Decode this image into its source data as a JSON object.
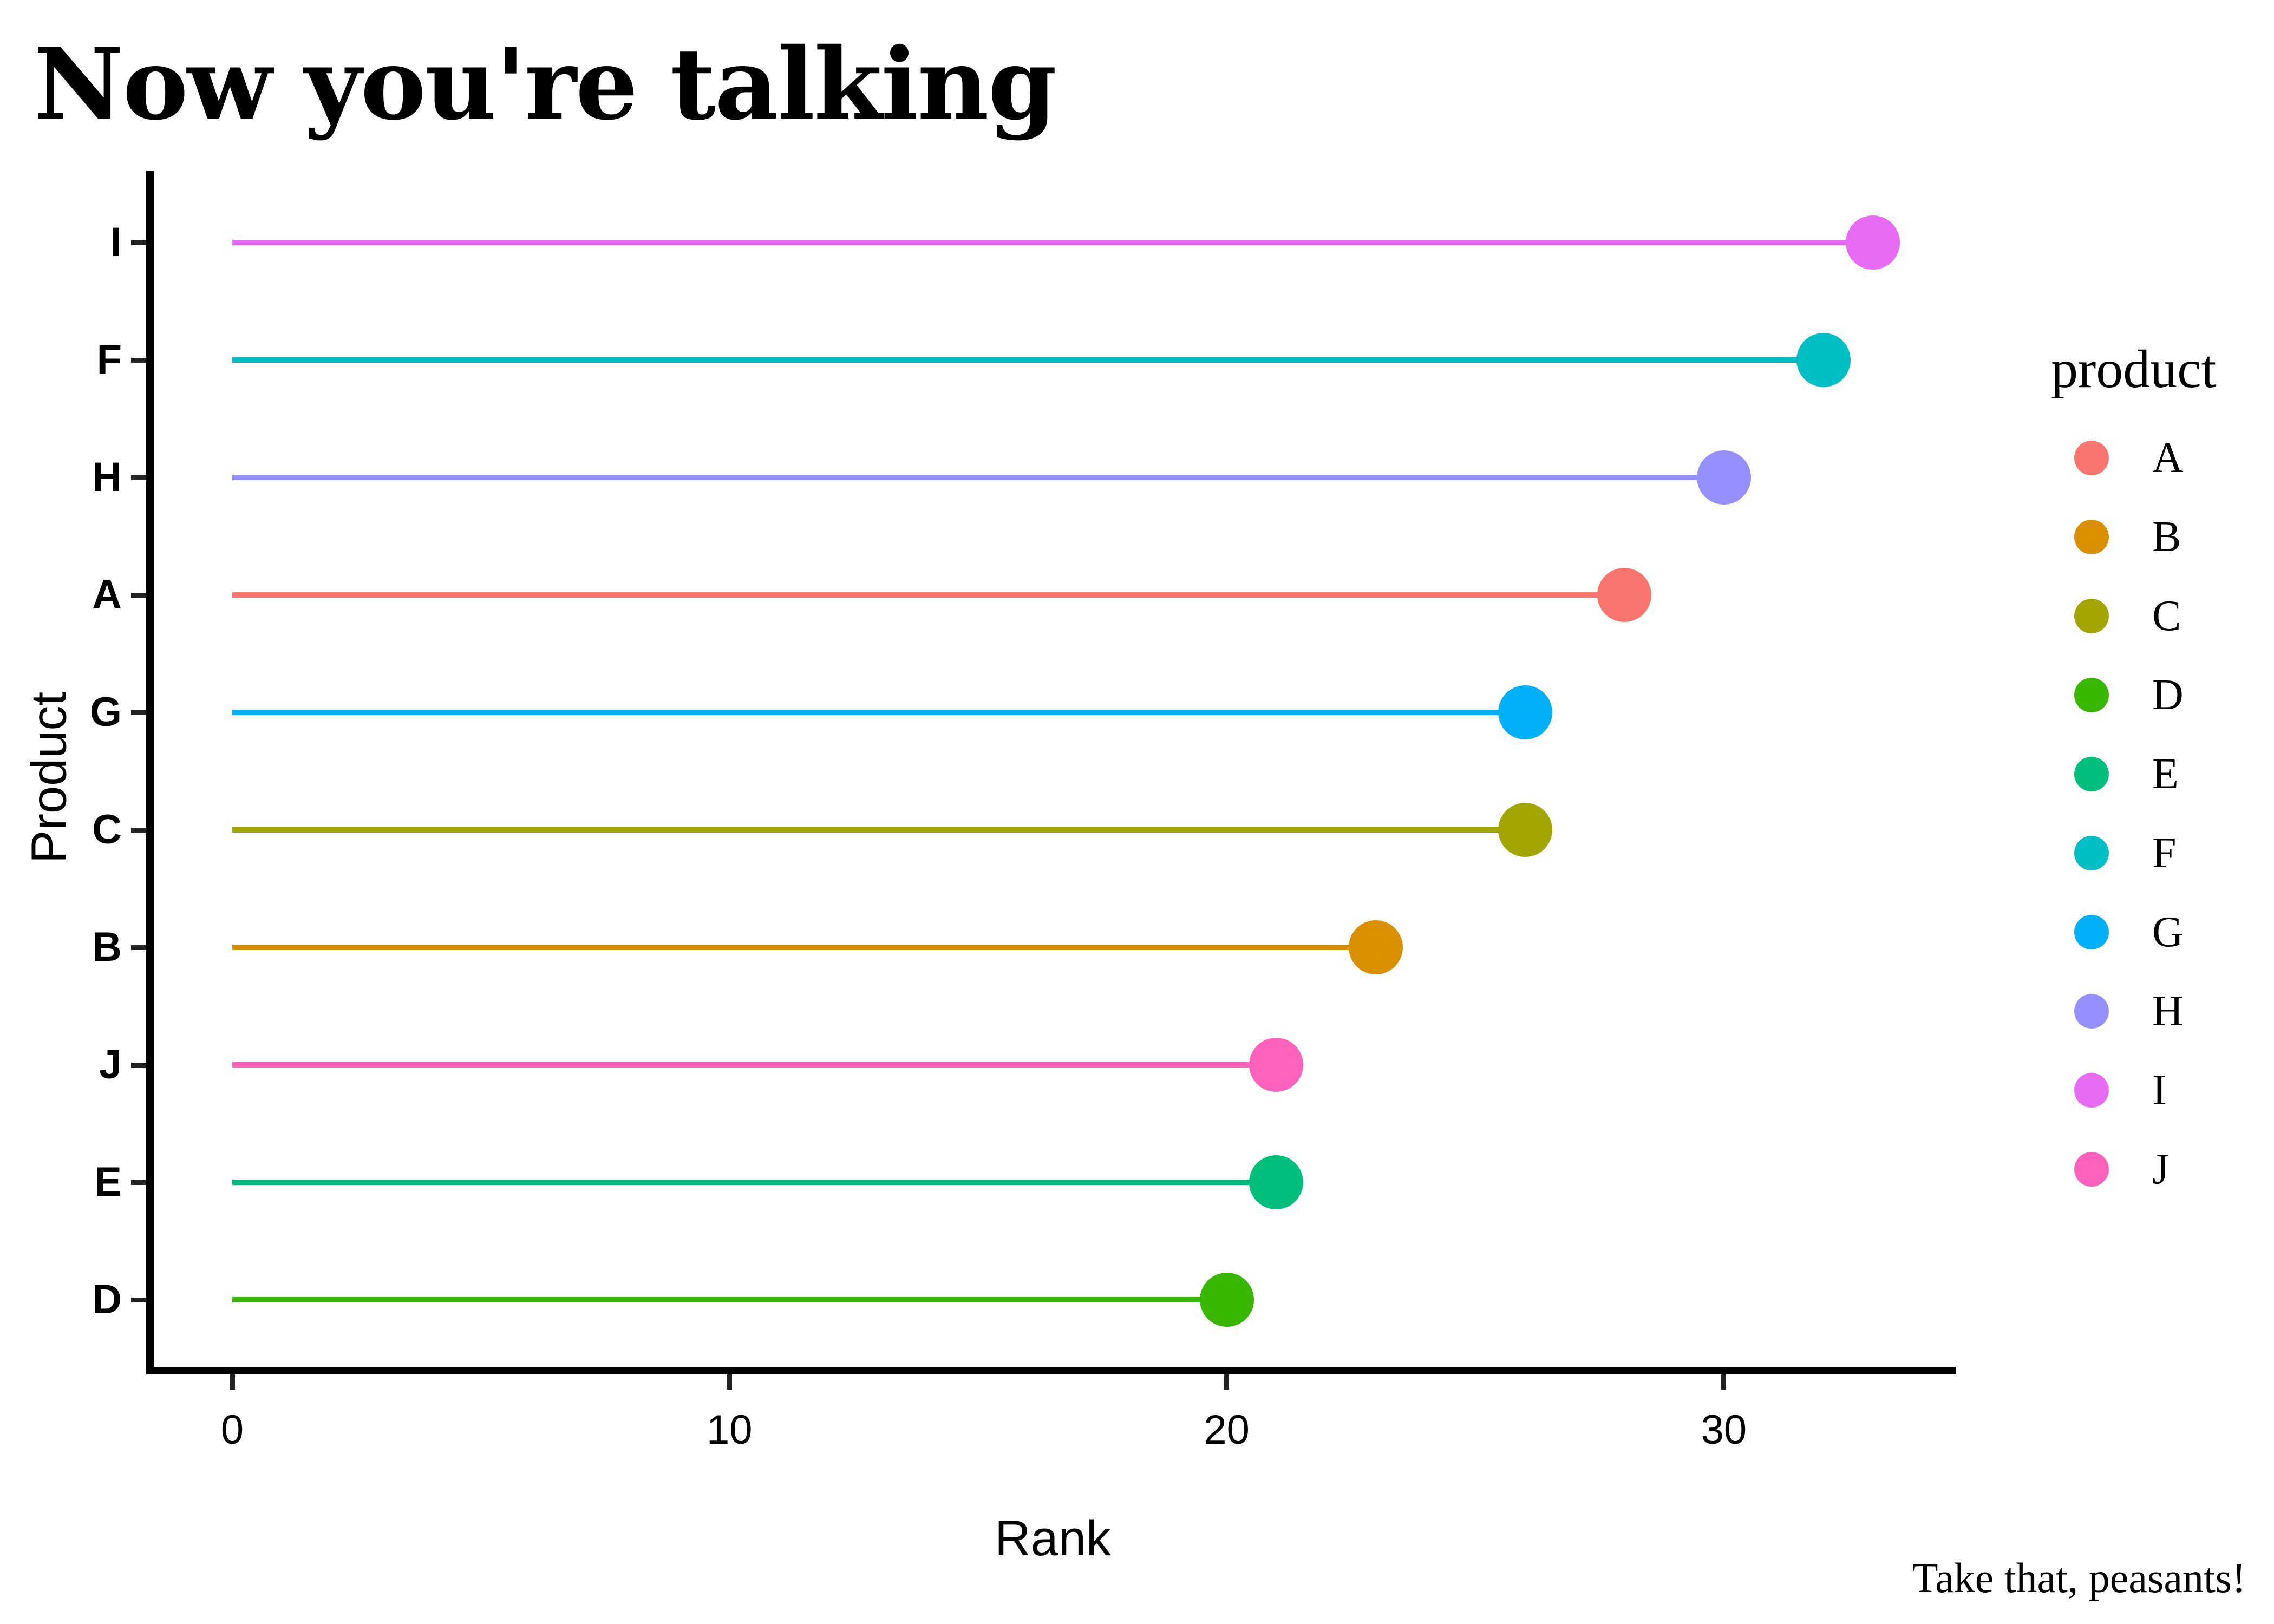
{
  "title": "Now you're talking",
  "caption": "Take that, peasants!",
  "axes": {
    "x": {
      "title": "Rank",
      "tick_labels": [
        "0",
        "10",
        "20",
        "30"
      ],
      "tick_values": [
        0,
        10,
        20,
        30
      ]
    },
    "y": {
      "title": "Product",
      "tick_labels": [
        "I",
        "F",
        "H",
        "A",
        "G",
        "C",
        "B",
        "J",
        "E",
        "D"
      ]
    }
  },
  "legend": {
    "title": "product",
    "items": [
      {
        "label": "A",
        "color": "#F8766D"
      },
      {
        "label": "B",
        "color": "#D89000"
      },
      {
        "label": "C",
        "color": "#A3A500"
      },
      {
        "label": "D",
        "color": "#39B600"
      },
      {
        "label": "E",
        "color": "#00BF7D"
      },
      {
        "label": "F",
        "color": "#00BFC4"
      },
      {
        "label": "G",
        "color": "#00B0F6"
      },
      {
        "label": "H",
        "color": "#9590FF"
      },
      {
        "label": "I",
        "color": "#E76BF3"
      },
      {
        "label": "J",
        "color": "#FF62BC"
      }
    ]
  },
  "chart_data": {
    "type": "lollipop",
    "orientation": "horizontal",
    "title": "Now you're talking",
    "xlabel": "Rank",
    "ylabel": "Product",
    "xlim": [
      0,
      33
    ],
    "x_ticks": [
      0,
      10,
      20,
      30
    ],
    "grid": false,
    "legend_position": "right",
    "categories_top_to_bottom": [
      "I",
      "F",
      "H",
      "A",
      "G",
      "C",
      "B",
      "J",
      "E",
      "D"
    ],
    "points": [
      {
        "product": "I",
        "rank": 33,
        "color": "#E76BF3"
      },
      {
        "product": "F",
        "rank": 32,
        "color": "#00BFC4"
      },
      {
        "product": "H",
        "rank": 30,
        "color": "#9590FF"
      },
      {
        "product": "A",
        "rank": 28,
        "color": "#F8766D"
      },
      {
        "product": "G",
        "rank": 26,
        "color": "#00B0F6"
      },
      {
        "product": "C",
        "rank": 26,
        "color": "#A3A500"
      },
      {
        "product": "B",
        "rank": 23,
        "color": "#D89000"
      },
      {
        "product": "J",
        "rank": 21,
        "color": "#FF62BC"
      },
      {
        "product": "E",
        "rank": 21,
        "color": "#00BF7D"
      },
      {
        "product": "D",
        "rank": 20,
        "color": "#39B600"
      }
    ]
  }
}
